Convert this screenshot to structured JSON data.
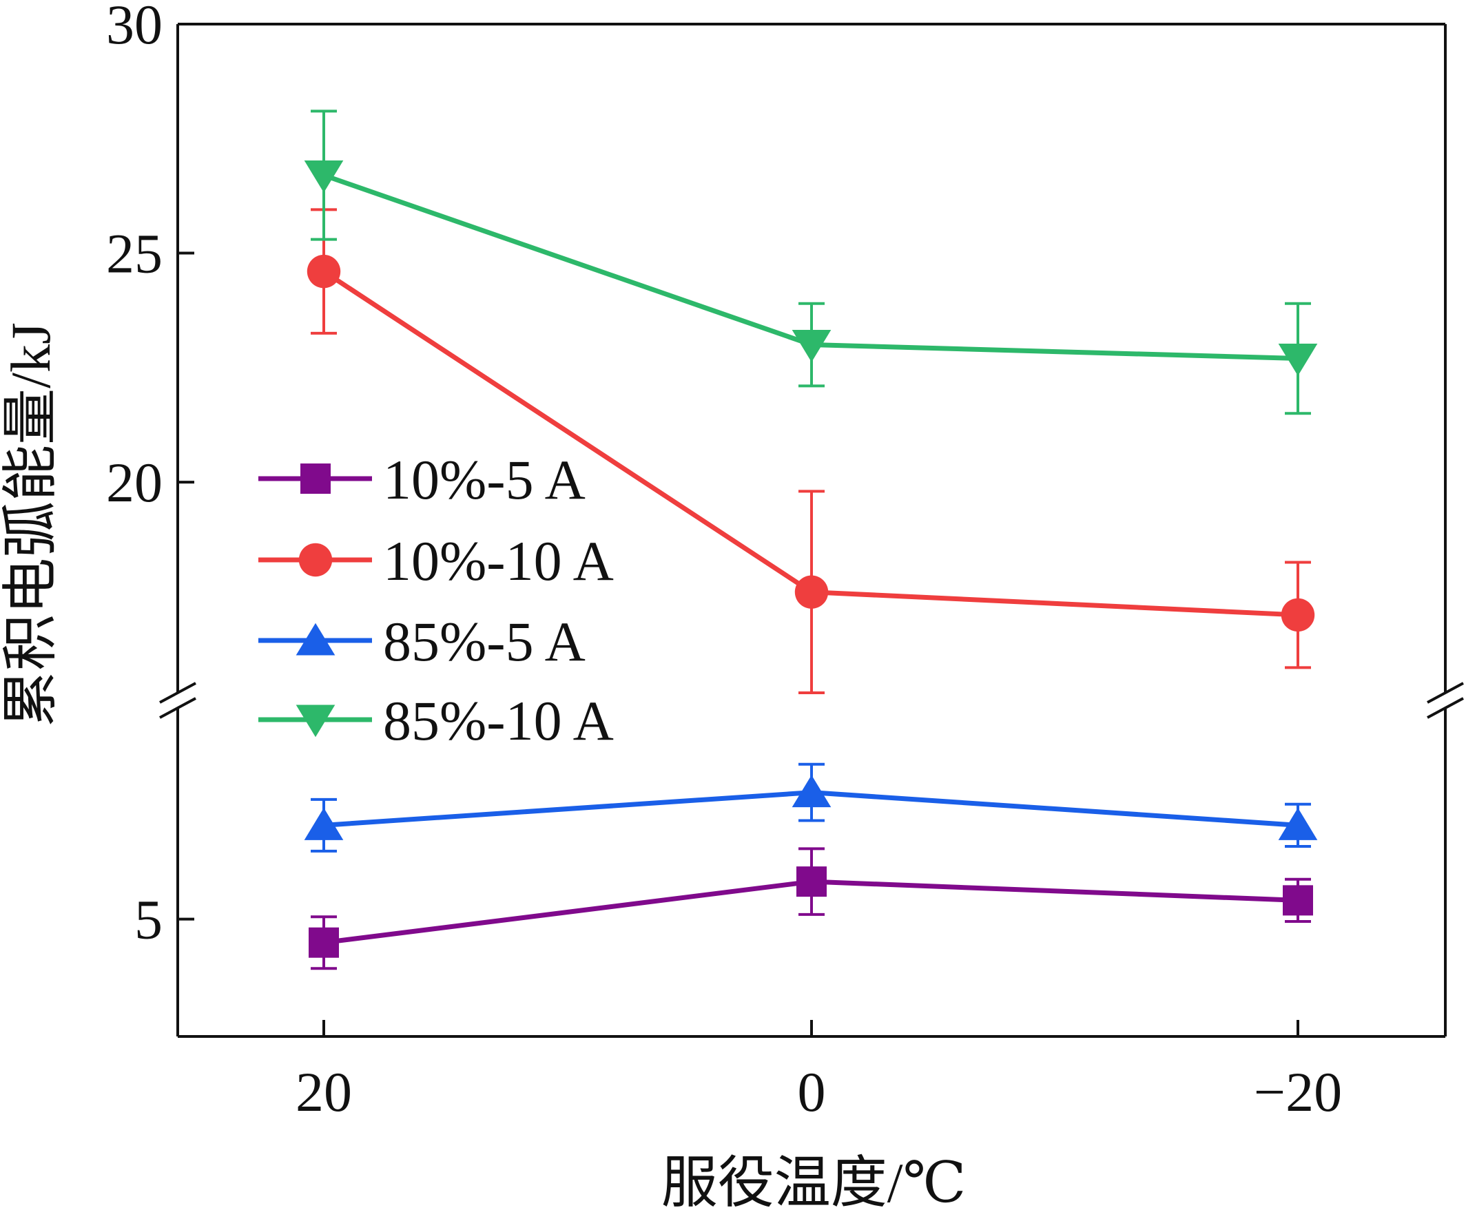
{
  "chart_data": {
    "type": "line",
    "title": "",
    "xlabel": "服役温度/℃",
    "ylabel": "累积电弧能量/kJ",
    "categories": [
      "20",
      "0",
      "−20"
    ],
    "x_tick_labels": [
      "20",
      "0",
      "−20"
    ],
    "y_tick_labels": [
      "30",
      "25",
      "20",
      "5"
    ],
    "y_axis": {
      "broken": true,
      "upper_range": [
        15.4,
        30
      ],
      "lower_range": [
        2.5,
        9.5
      ],
      "ticks": [
        30,
        25,
        20,
        5
      ]
    },
    "legend_position": "middle-left",
    "series": [
      {
        "name": "10%-5 A",
        "color": "#800a8c",
        "marker": "square",
        "values": [
          4.5,
          5.8,
          5.4
        ],
        "errors": [
          0.55,
          0.7,
          0.45
        ]
      },
      {
        "name": "10%-10 A",
        "color": "#ef3e3e",
        "marker": "circle",
        "values": [
          24.6,
          17.6,
          17.1
        ],
        "errors": [
          1.35,
          2.2,
          1.15
        ]
      },
      {
        "name": "85%-5 A",
        "color": "#1a5fe8",
        "marker": "triangle-up",
        "values": [
          7.0,
          7.7,
          7.0
        ],
        "errors": [
          0.55,
          0.6,
          0.45
        ]
      },
      {
        "name": "85%-10 A",
        "color": "#2db86a",
        "marker": "triangle-down",
        "values": [
          26.7,
          23.0,
          22.7
        ],
        "errors": [
          1.4,
          0.9,
          1.2
        ]
      }
    ]
  }
}
